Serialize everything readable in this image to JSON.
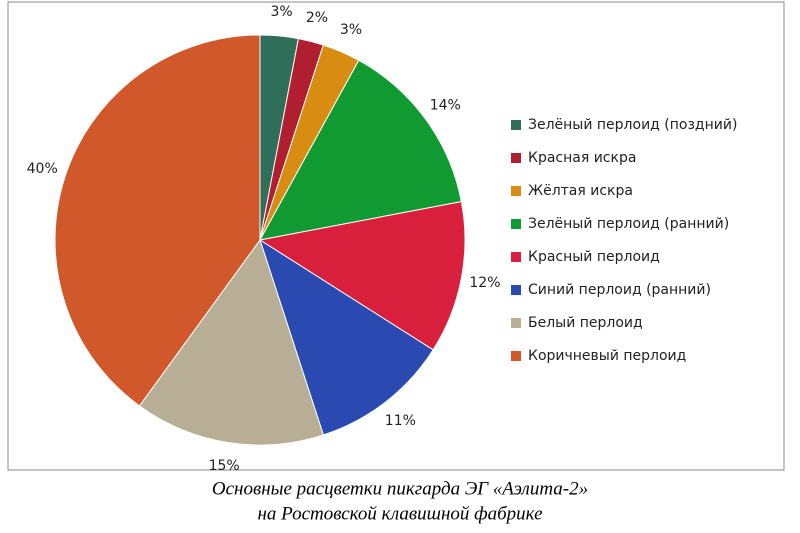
{
  "chart_data": {
    "type": "pie",
    "title": "Основные расцветки пикгарда ЭГ «Аэлита-2»",
    "subtitle": "на Ростовской клавишной фабрике",
    "series": [
      {
        "name": "Зелёный перлоид (поздний)",
        "color": "#2f6e58",
        "values": [
          3
        ],
        "value_labels": [
          "3%"
        ]
      },
      {
        "name": "Красная искра",
        "color": "#b01e30",
        "values": [
          2
        ],
        "value_labels": [
          "2%"
        ]
      },
      {
        "name": "Жёлтая искра",
        "color": "#d98c12",
        "values": [
          3
        ],
        "value_labels": [
          "3%"
        ]
      },
      {
        "name": "Зелёный перлоид (ранний)",
        "color": "#129a32",
        "values": [
          14
        ],
        "value_labels": [
          "14%"
        ]
      },
      {
        "name": "Красный перлоид",
        "color": "#d8203c",
        "values": [
          12
        ],
        "value_labels": [
          "12%"
        ]
      },
      {
        "name": "Синий перлоид (ранний)",
        "color": "#2a4ab2",
        "values": [
          11
        ],
        "value_labels": [
          "11%"
        ]
      },
      {
        "name": "Белый перлоид",
        "color": "#b8ad95",
        "values": [
          15
        ],
        "value_labels": [
          "15%"
        ]
      },
      {
        "name": "Коричневый перлоид",
        "color": "#d0582a",
        "values": [
          40
        ],
        "value_labels": [
          "40%"
        ]
      }
    ]
  }
}
